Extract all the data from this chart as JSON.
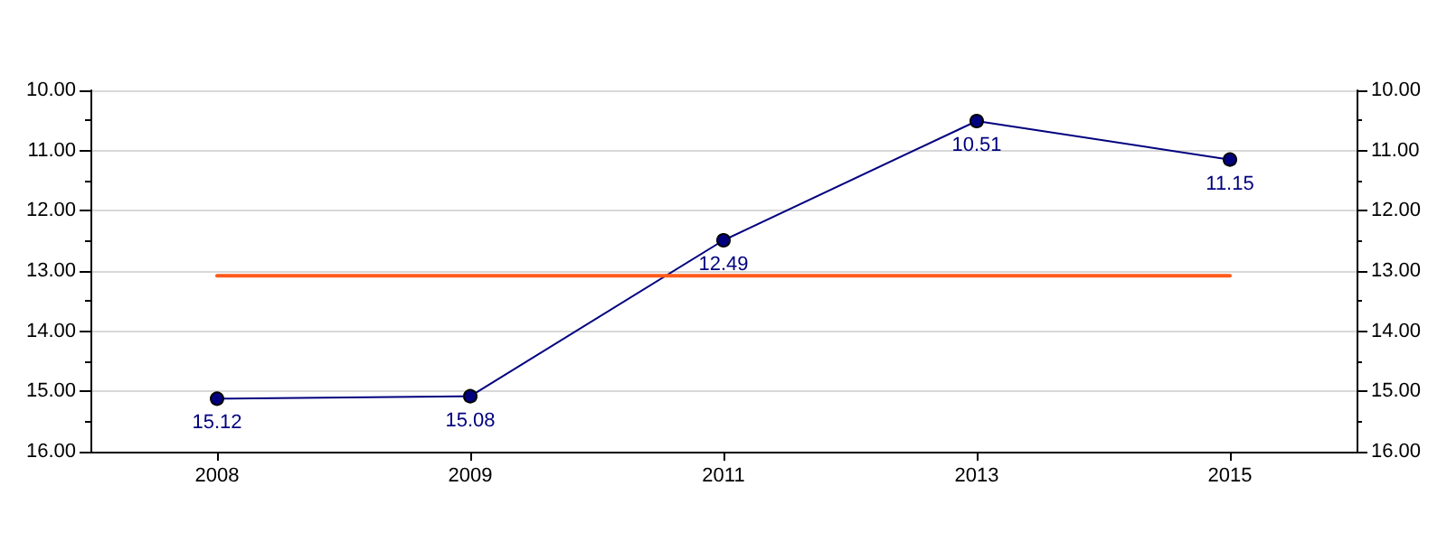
{
  "chart_data": {
    "type": "line",
    "categories": [
      "2008",
      "2009",
      "2011",
      "2013",
      "2015"
    ],
    "series": [
      {
        "color": "#00007f",
        "values": [
          15.12,
          15.08,
          12.49,
          10.51,
          11.15
        ],
        "value_labels": [
          "15.12",
          "15.08",
          "12.49",
          "10.51",
          "11.15"
        ],
        "marker": "circle"
      },
      {
        "color": "#ff5a1a",
        "values": [
          13.08,
          13.08,
          13.08,
          13.08,
          13.08
        ],
        "marker": "none"
      }
    ],
    "ylim": [
      16,
      10
    ],
    "yticks": [
      {
        "value": 10,
        "label": "10.00"
      },
      {
        "value": 10.5,
        "label": null
      },
      {
        "value": 11,
        "label": "11.00"
      },
      {
        "value": 11.5,
        "label": null
      },
      {
        "value": 12,
        "label": "12.00"
      },
      {
        "value": 12.5,
        "label": null
      },
      {
        "value": 13,
        "label": "13.00"
      },
      {
        "value": 13.5,
        "label": null
      },
      {
        "value": 14,
        "label": "14.00"
      },
      {
        "value": 14.5,
        "label": null
      },
      {
        "value": 15,
        "label": "15.00"
      },
      {
        "value": 15.5,
        "label": null
      },
      {
        "value": 16,
        "label": "16.00"
      }
    ],
    "y2lim": [
      16,
      10
    ],
    "y2ticks": [
      {
        "value": 10,
        "label": "10.00"
      },
      {
        "value": 10.5,
        "label": null
      },
      {
        "value": 11,
        "label": "11.00"
      },
      {
        "value": 11.5,
        "label": null
      },
      {
        "value": 12,
        "label": "12.00"
      },
      {
        "value": 12.5,
        "label": null
      },
      {
        "value": 13,
        "label": "13.00"
      },
      {
        "value": 13.5,
        "label": null
      },
      {
        "value": 14,
        "label": "14.00"
      },
      {
        "value": 14.5,
        "label": null
      },
      {
        "value": 15,
        "label": "15.00"
      },
      {
        "value": 15.5,
        "label": null
      },
      {
        "value": 16,
        "label": "16.00"
      }
    ],
    "grid": "y"
  }
}
